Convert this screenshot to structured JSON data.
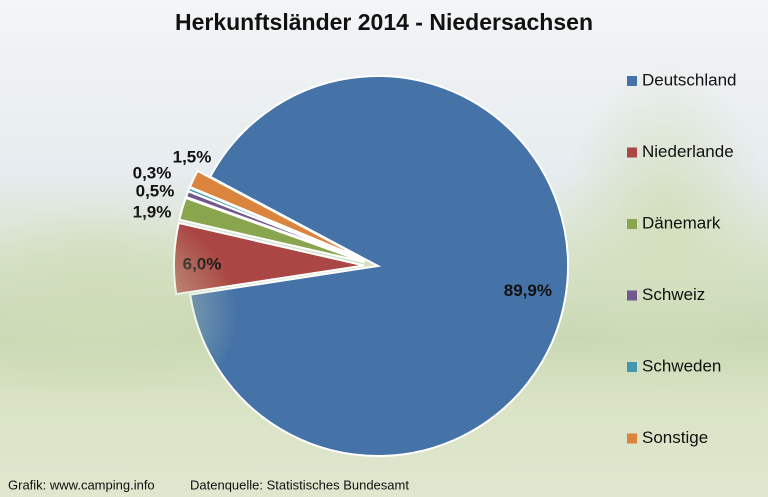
{
  "chart_data": {
    "type": "pie",
    "title": "Herkunftsländer 2014 - Niedersachsen",
    "categories": [
      "Deutschland",
      "Niederlande",
      "Dänemark",
      "Schweiz",
      "Schweden",
      "Sonstige"
    ],
    "values": [
      89.9,
      6.0,
      1.9,
      0.5,
      0.3,
      1.5
    ],
    "value_labels": [
      "89,9%",
      "6,0%",
      "1,9%",
      "0,5%",
      "0,3%",
      "1,5%"
    ],
    "colors": [
      "#4572a7",
      "#aa4643",
      "#89a54e",
      "#71588f",
      "#4198af",
      "#db843d"
    ],
    "legend": "right",
    "footnotes": [
      "Grafik: www.camping.info",
      "Datenquelle: Statistisches Bundesamt"
    ]
  }
}
